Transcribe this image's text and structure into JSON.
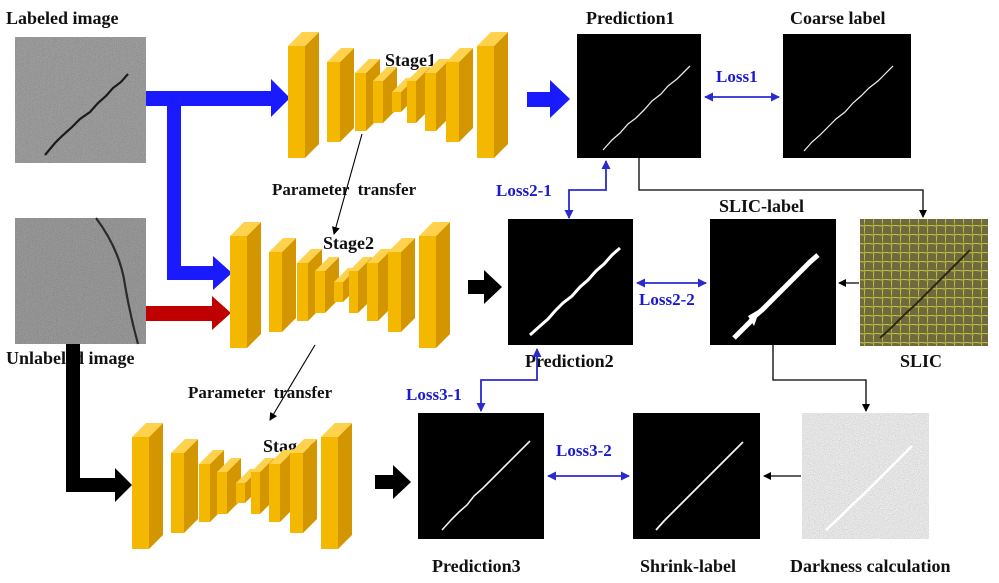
{
  "labels": {
    "labeled_image": "Labeled image",
    "unlabeled_image": "Unlabeled image",
    "stage1": "Stage1",
    "stage2": "Stage2",
    "stage3": "Stage3",
    "param_transfer_1": "Parameter  transfer",
    "param_transfer_2": "Parameter  transfer",
    "prediction1": "Prediction1",
    "prediction2": "Prediction2",
    "prediction3": "Prediction3",
    "coarse_label": "Coarse label",
    "slic_label": "SLIC-label",
    "slic": "SLIC",
    "shrink_label": "Shrink-label",
    "darkness_calc": "Darkness calculation"
  },
  "losses": {
    "loss1": "Loss1",
    "loss2_1": "Loss2-1",
    "loss2_2": "Loss2-2",
    "loss3_1": "Loss3-1",
    "loss3_2": "Loss3-2"
  },
  "colors": {
    "labeled_arrow": "#1a1aff",
    "unlabeled_arrow_stage2": "#c00000",
    "unlabeled_arrow_stage3": "#000000",
    "network_block": "#f5b800",
    "loss_arrow": "#2a2ad0",
    "loss_text": "#1a1acc"
  },
  "icons": {
    "network": "encoder-decoder-blocks",
    "image": "crack-image-thumbnail"
  }
}
